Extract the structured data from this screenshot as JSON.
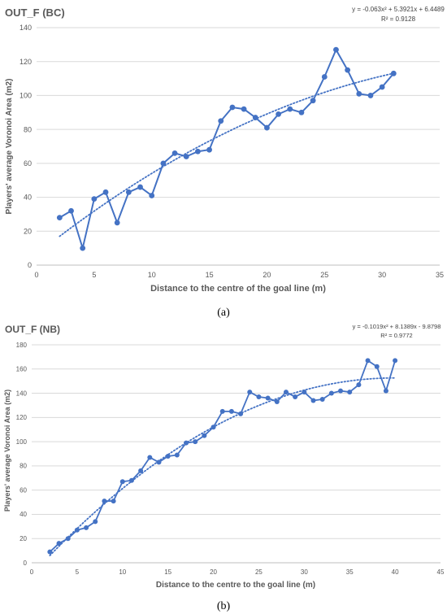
{
  "chart_data": [
    {
      "type": "scatter",
      "title": "OUT_F (BC)",
      "xlabel": "Distance to the centre of the goal line (m)",
      "ylabel": "Players' average Voronoi Area (m2)",
      "xlim": [
        0,
        35
      ],
      "ylim": [
        0,
        140
      ],
      "x_ticks": [
        "0",
        "5",
        "10",
        "15",
        "20",
        "25",
        "30",
        "35"
      ],
      "y_ticks": [
        "0",
        "20",
        "40",
        "60",
        "80",
        "100",
        "120",
        "140"
      ],
      "grid": "horizontal",
      "series": [
        {
          "color": "#4472C4",
          "marker": "circle",
          "line": "solid",
          "x": [
            2,
            3,
            4,
            5,
            6,
            7,
            8,
            9,
            10,
            11,
            12,
            13,
            14,
            15,
            16,
            17,
            18,
            19,
            20,
            21,
            22,
            23,
            24,
            25,
            26,
            27,
            28,
            29,
            30,
            31
          ],
          "y": [
            28,
            32,
            10,
            39,
            43,
            25,
            43,
            46,
            41,
            60,
            66,
            64,
            67,
            68,
            85,
            93,
            92,
            87,
            81,
            89,
            92,
            90,
            97,
            111,
            127,
            115,
            101,
            100,
            105,
            113
          ]
        }
      ],
      "trendline": {
        "kind": "polynomial",
        "coefficients": [
          -0.063,
          5.3921,
          6.4489
        ],
        "x_range": [
          2,
          31
        ],
        "style": "dotted",
        "color": "#4472C4",
        "equation": "y = -0.063x² + 5.3921x + 6.4489",
        "r2": "R² = 0.9128"
      },
      "caption": "(a)"
    },
    {
      "type": "scatter",
      "title": "OUT_F (NB)",
      "xlabel": "Distance to the centre to the goal line (m)",
      "ylabel": "Players' average Voronoi Area (m2)",
      "xlim": [
        0,
        45
      ],
      "ylim": [
        0,
        180
      ],
      "x_ticks": [
        "0",
        "5",
        "10",
        "15",
        "20",
        "25",
        "30",
        "35",
        "40",
        "45"
      ],
      "y_ticks": [
        "0",
        "20",
        "40",
        "60",
        "80",
        "100",
        "120",
        "140",
        "160",
        "180"
      ],
      "grid": "horizontal",
      "series": [
        {
          "color": "#4472C4",
          "marker": "circle",
          "line": "solid",
          "x": [
            2,
            3,
            4,
            5,
            6,
            7,
            8,
            9,
            10,
            11,
            12,
            13,
            14,
            15,
            16,
            17,
            18,
            19,
            20,
            21,
            22,
            23,
            24,
            25,
            26,
            27,
            28,
            29,
            30,
            31,
            32,
            33,
            34,
            35,
            36,
            37,
            38,
            39,
            40
          ],
          "y": [
            9,
            16,
            20,
            27,
            29,
            34,
            51,
            51,
            67,
            68,
            76,
            87,
            83,
            88,
            89,
            99,
            100,
            105,
            112,
            125,
            125,
            123,
            141,
            137,
            136,
            133,
            141,
            137,
            141,
            134,
            135,
            140,
            142,
            141,
            147,
            167,
            162,
            142,
            167
          ]
        }
      ],
      "trendline": {
        "kind": "polynomial",
        "coefficients": [
          -0.1019,
          8.1389,
          -9.8798
        ],
        "x_range": [
          2,
          40
        ],
        "style": "dotted",
        "color": "#4472C4",
        "equation": "y = -0.1019x² + 8.1389x - 9.8798",
        "r2": "R² = 0.9772"
      },
      "caption": "(b)"
    }
  ],
  "colors": {
    "series": "#4472C4",
    "grid": "#D9D9D9",
    "text": "#595959"
  }
}
